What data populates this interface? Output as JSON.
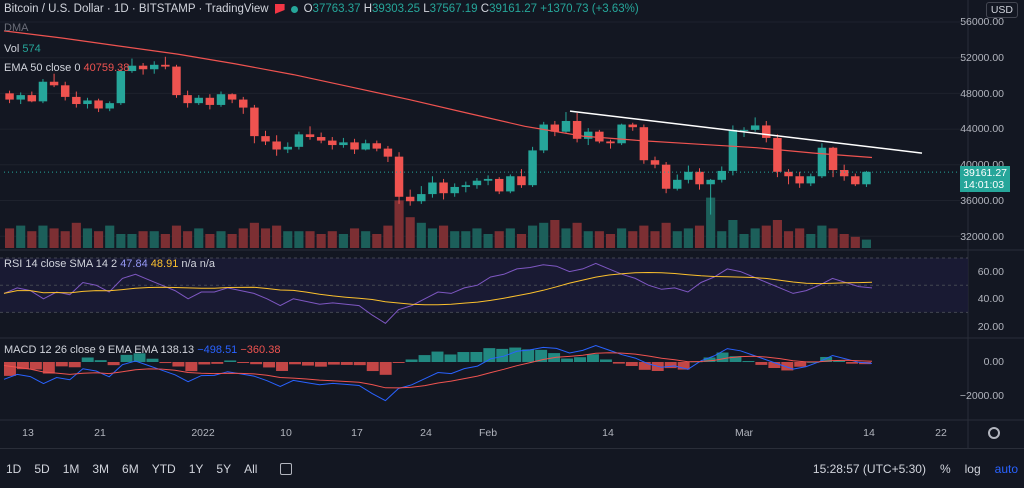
{
  "header": {
    "title": "Bitcoin / U.S. Dollar · 1D · BITSTAMP · TradingView",
    "ohlc": {
      "o_label": "O",
      "o": "37763.37",
      "h_label": "H",
      "h": "39303.25",
      "l_label": "L",
      "l": "37567.19",
      "c_label": "C",
      "c": "39161.27",
      "change": "+1370.73 (+3.63%)"
    },
    "currency": "USD"
  },
  "legends": {
    "dma": "DMA",
    "vol_label": "Vol",
    "vol_value": "574",
    "ema_label": "EMA 50 close 0",
    "ema_value": "40759.38",
    "rsi_label": "RSI 14 close SMA 14 2",
    "rsi_value": "47.84",
    "rsi_sma": "48.91",
    "rsi_na": "n/a n/a",
    "macd_label": "MACD 12 26 close 9 EMA EMA",
    "macd_hist": "138.13",
    "macd_line": "−498.51",
    "macd_signal": "−360.38"
  },
  "price_axis": [
    "56000.00",
    "52000.00",
    "48000.00",
    "44000.00",
    "40000.00",
    "36000.00",
    "32000.00"
  ],
  "rsi_axis": [
    "60.00",
    "40.00",
    "20.00"
  ],
  "macd_axis": [
    "0.00",
    "−2000.00"
  ],
  "last_price": {
    "price": "39161.27",
    "countdown": "14:01:03"
  },
  "time_axis": [
    "13",
    "21",
    "2022",
    "10",
    "17",
    "24",
    "Feb",
    "14",
    "Mar",
    "14",
    "22"
  ],
  "bottom": {
    "ranges": [
      "1D",
      "5D",
      "1M",
      "3M",
      "6M",
      "YTD",
      "1Y",
      "5Y",
      "All"
    ],
    "time": "15:28:57 (UTC+5:30)",
    "pct": "%",
    "log": "log",
    "auto": "auto"
  },
  "colors": {
    "bull": "#26a69a",
    "bear": "#ef5350",
    "bg": "#131722",
    "ema": "#ef5350",
    "rsi": "#7e57c2",
    "rsi_sma": "#fbc02d",
    "macd": "#2962ff",
    "trendline": "#ffffff"
  },
  "chart_data": {
    "type": "candlestick",
    "ylim": [
      30000,
      57000
    ],
    "candles": [
      [
        48000,
        48300,
        46900,
        47300
      ],
      [
        47300,
        48100,
        46800,
        47800
      ],
      [
        47800,
        48200,
        47000,
        47100
      ],
      [
        47100,
        49600,
        46900,
        49300
      ],
      [
        49300,
        50200,
        48700,
        48900
      ],
      [
        48900,
        49300,
        47200,
        47600
      ],
      [
        47600,
        48200,
        46400,
        46800
      ],
      [
        46800,
        47500,
        46300,
        47200
      ],
      [
        47200,
        47400,
        45900,
        46300
      ],
      [
        46300,
        47100,
        46000,
        46900
      ],
      [
        46900,
        50700,
        46700,
        50500
      ],
      [
        50500,
        51900,
        50300,
        51100
      ],
      [
        51100,
        51400,
        50100,
        50700
      ],
      [
        50700,
        51600,
        50200,
        51200
      ],
      [
        51200,
        52100,
        50700,
        51000
      ],
      [
        51000,
        51200,
        47500,
        47800
      ],
      [
        47800,
        48300,
        46400,
        46900
      ],
      [
        46900,
        47800,
        46700,
        47500
      ],
      [
        47500,
        47900,
        46200,
        46700
      ],
      [
        46700,
        48200,
        46500,
        47900
      ],
      [
        47900,
        48000,
        46900,
        47300
      ],
      [
        47300,
        47600,
        45700,
        46400
      ],
      [
        46400,
        46700,
        42400,
        43200
      ],
      [
        43200,
        43800,
        42200,
        42600
      ],
      [
        42600,
        43300,
        41000,
        41700
      ],
      [
        41700,
        42500,
        41300,
        42000
      ],
      [
        42000,
        43700,
        41700,
        43400
      ],
      [
        43400,
        44300,
        42800,
        43100
      ],
      [
        43100,
        43600,
        42400,
        42700
      ],
      [
        42700,
        43100,
        41700,
        42200
      ],
      [
        42200,
        43000,
        41900,
        42500
      ],
      [
        42500,
        42900,
        41200,
        41700
      ],
      [
        41700,
        42800,
        41600,
        42400
      ],
      [
        42400,
        42700,
        41500,
        41800
      ],
      [
        41800,
        42100,
        40300,
        40900
      ],
      [
        40900,
        41400,
        35600,
        36400
      ],
      [
        36400,
        37200,
        35400,
        35900
      ],
      [
        35900,
        37600,
        35600,
        36700
      ],
      [
        36700,
        38700,
        36300,
        38000
      ],
      [
        38000,
        38400,
        36100,
        36800
      ],
      [
        36800,
        37900,
        36400,
        37500
      ],
      [
        37500,
        38100,
        36900,
        37700
      ],
      [
        37700,
        38500,
        37300,
        38200
      ],
      [
        38200,
        38800,
        37700,
        38400
      ],
      [
        38400,
        38600,
        36700,
        37000
      ],
      [
        37000,
        38900,
        36800,
        38700
      ],
      [
        38700,
        39500,
        37400,
        37700
      ],
      [
        37700,
        42000,
        37500,
        41600
      ],
      [
        41600,
        44800,
        41300,
        44500
      ],
      [
        44500,
        44900,
        43200,
        43700
      ],
      [
        43700,
        45900,
        43500,
        44900
      ],
      [
        44900,
        45800,
        42500,
        42900
      ],
      [
        42900,
        44100,
        42200,
        43700
      ],
      [
        43700,
        43900,
        42400,
        42600
      ],
      [
        42600,
        42800,
        41800,
        42400
      ],
      [
        42400,
        44600,
        42200,
        44500
      ],
      [
        44500,
        44700,
        43800,
        44200
      ],
      [
        44200,
        44500,
        40100,
        40500
      ],
      [
        40500,
        40900,
        39600,
        40000
      ],
      [
        40000,
        40300,
        36800,
        37300
      ],
      [
        37300,
        38900,
        37100,
        38300
      ],
      [
        38300,
        39900,
        37900,
        39200
      ],
      [
        39200,
        39600,
        37200,
        37800
      ],
      [
        37800,
        38400,
        34400,
        38300
      ],
      [
        38300,
        39800,
        38000,
        39300
      ],
      [
        39300,
        44400,
        38800,
        43900
      ],
      [
        43900,
        44200,
        43100,
        43900
      ],
      [
        43900,
        45300,
        43700,
        44400
      ],
      [
        44400,
        44900,
        42500,
        43000
      ],
      [
        43000,
        43400,
        38600,
        39200
      ],
      [
        39200,
        39500,
        37800,
        38700
      ],
      [
        38700,
        39200,
        37400,
        37900
      ],
      [
        37900,
        39000,
        37600,
        38700
      ],
      [
        38700,
        42400,
        38500,
        41900
      ],
      [
        41900,
        42000,
        38600,
        39400
      ],
      [
        39400,
        40000,
        38200,
        38700
      ],
      [
        38700,
        39000,
        37600,
        37800
      ],
      [
        37800,
        39300,
        37500,
        39200
      ]
    ],
    "volumes": [
      0.7,
      0.8,
      0.6,
      0.8,
      0.7,
      0.6,
      0.9,
      0.7,
      0.6,
      0.8,
      0.5,
      0.5,
      0.6,
      0.6,
      0.5,
      0.8,
      0.6,
      0.7,
      0.5,
      0.6,
      0.5,
      0.7,
      0.9,
      0.7,
      0.8,
      0.6,
      0.6,
      0.6,
      0.5,
      0.6,
      0.5,
      0.7,
      0.6,
      0.5,
      0.8,
      1.7,
      1.1,
      0.9,
      0.7,
      0.8,
      0.6,
      0.6,
      0.7,
      0.5,
      0.6,
      0.7,
      0.5,
      0.8,
      0.9,
      1.0,
      0.7,
      0.9,
      0.6,
      0.6,
      0.5,
      0.7,
      0.6,
      0.8,
      0.6,
      0.9,
      0.6,
      0.7,
      0.8,
      1.8,
      0.6,
      1.0,
      0.5,
      0.7,
      0.8,
      1.0,
      0.6,
      0.7,
      0.5,
      0.8,
      0.7,
      0.5,
      0.4,
      0.3
    ],
    "ema50": [
      55000,
      54200,
      53300,
      52400,
      51300,
      50100,
      48700,
      47300,
      45800,
      44300,
      43200,
      42700,
      42300,
      41900,
      41300,
      40800
    ],
    "rsi": [
      44,
      48,
      46,
      40,
      45,
      43,
      52,
      50,
      45,
      55,
      58,
      54,
      50,
      46,
      40,
      45,
      45,
      48,
      46,
      44,
      40,
      35,
      40,
      38,
      36,
      37,
      36,
      35,
      28,
      22,
      32,
      35,
      40,
      45,
      44,
      48,
      50,
      56,
      58,
      62,
      63,
      65,
      64,
      60,
      62,
      66,
      62,
      58,
      55,
      50,
      47,
      48,
      45,
      52,
      56,
      62,
      60,
      56,
      52,
      48,
      44,
      46,
      50,
      55,
      52,
      49,
      48
    ]
  }
}
